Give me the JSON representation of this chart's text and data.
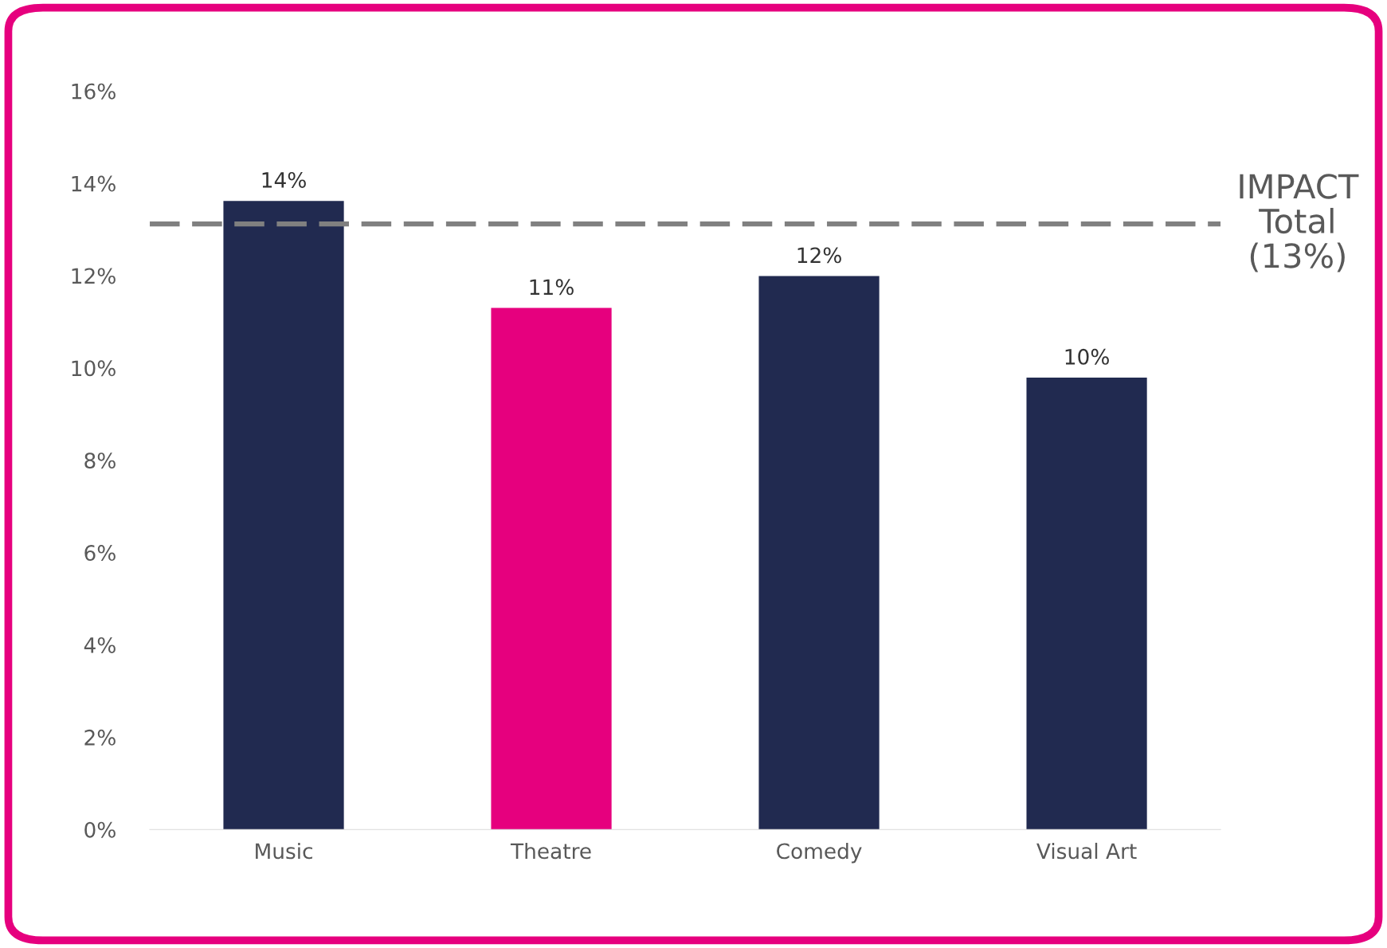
{
  "chart_data": {
    "type": "bar",
    "categories": [
      "Music",
      "Theatre",
      "Comedy",
      "Visual Art"
    ],
    "values": [
      13.62,
      11.3,
      11.99,
      9.79
    ],
    "colors": [
      "#212a50",
      "#e6007e",
      "#212a50",
      "#212a50"
    ],
    "value_labels": [
      "14%",
      "11%",
      "12%",
      "10%"
    ],
    "ylim": [
      0,
      16
    ],
    "yticks": [
      {
        "value": 0,
        "label": "0%"
      },
      {
        "value": 2,
        "label": "2%"
      },
      {
        "value": 4,
        "label": "4%"
      },
      {
        "value": 6,
        "label": "6%"
      },
      {
        "value": 8,
        "label": "8%"
      },
      {
        "value": 10,
        "label": "10%"
      },
      {
        "value": 12,
        "label": "12%"
      },
      {
        "value": 14,
        "label": "14%"
      },
      {
        "value": 16,
        "label": "16%"
      }
    ],
    "ref_lines": [
      {
        "axis": "y",
        "value": 13.12,
        "label": "IMPACT\nTotal\n(13%)",
        "color": "#808080",
        "line_style": "dashed"
      }
    ],
    "grid": false,
    "legend": false
  }
}
